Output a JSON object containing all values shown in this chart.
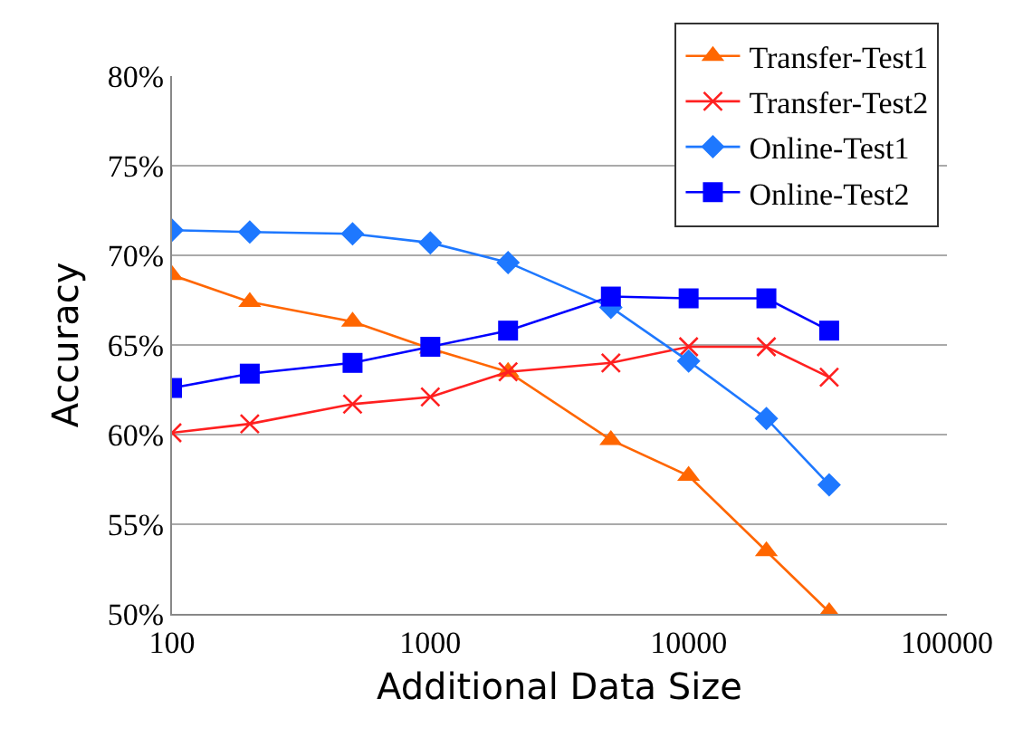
{
  "chart_data": {
    "type": "line",
    "xlabel": "Additional Data Size",
    "ylabel": "Accuracy",
    "x": [
      100,
      200,
      500,
      1000,
      2000,
      5000,
      10000,
      20000,
      35000
    ],
    "series": [
      {
        "name": "Transfer-Test1",
        "color": "#ff6600",
        "marker": "triangle",
        "values": [
          68.9,
          67.4,
          66.3,
          64.8,
          63.5,
          59.7,
          57.7,
          53.5,
          50.1
        ]
      },
      {
        "name": "Transfer-Test2",
        "color": "#ff2020",
        "marker": "cross",
        "values": [
          60.1,
          60.6,
          61.7,
          62.1,
          63.5,
          64.0,
          64.9,
          64.9,
          63.2
        ]
      },
      {
        "name": "Online-Test1",
        "color": "#1e78ff",
        "marker": "diamond",
        "values": [
          71.4,
          71.3,
          71.2,
          70.7,
          69.6,
          67.1,
          64.1,
          60.9,
          57.2
        ]
      },
      {
        "name": "Online-Test2",
        "color": "#0000ff",
        "marker": "square",
        "values": [
          62.6,
          63.4,
          64.0,
          64.9,
          65.8,
          67.7,
          67.6,
          67.6,
          65.8
        ]
      }
    ],
    "log": "x",
    "xlim": [
      100,
      100000
    ],
    "xticks": [
      100,
      1000,
      10000,
      100000
    ],
    "ylim": [
      50,
      80
    ],
    "yticks": [
      {
        "value": 50,
        "label": "50%"
      },
      {
        "value": 55,
        "label": "55%"
      },
      {
        "value": 60,
        "label": "60%"
      },
      {
        "value": 65,
        "label": "65%"
      },
      {
        "value": 70,
        "label": "70%"
      },
      {
        "value": 75,
        "label": "75%"
      },
      {
        "value": 80,
        "label": "80%"
      }
    ],
    "grid": "y",
    "legend": "top right"
  }
}
